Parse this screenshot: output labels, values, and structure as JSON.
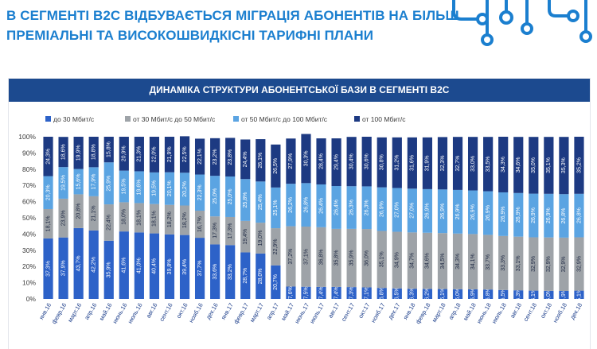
{
  "slide": {
    "title_line1": "В СЕГМЕНТІ B2C ВІДБУВАЄТЬСЯ МІГРАЦІЯ АБОНЕНТІВ НА БІЛЬШ",
    "title_line2": "ПРЕМІАЛЬНІ  ТА ВИСОКОШВИДКІСНІ ТАРИФНІ ПЛАНИ"
  },
  "colors": {
    "title": "#1b7fcf",
    "banner_bg": "#1c4a8f",
    "banner_text": "#ffffff",
    "decor": "#1b7fcf"
  },
  "decor": {
    "icon": "circuit-board-icon"
  },
  "chart_data": {
    "type": "bar",
    "stacked": true,
    "normalized": true,
    "title": "ДИНАМІКА СТРУКТУРИ АБОНЕНТСЬКОЇ БАЗИ В СЕГМЕНТІ B2C",
    "ylim": [
      0,
      100
    ],
    "yticks": [
      "0%",
      "10%",
      "20%",
      "30%",
      "40%",
      "50%",
      "60%",
      "70%",
      "80%",
      "90%",
      "100%"
    ],
    "legend_position": "top",
    "grid": false,
    "categories": [
      "янв.16",
      "февр.16",
      "март.16",
      "апр.16",
      "май.16",
      "июнь.16",
      "июль.16",
      "авг.16",
      "сент.16",
      "окт.16",
      "нояб.16",
      "дек.16",
      "янв.17",
      "февр.17",
      "март.17",
      "апр.17",
      "май.17",
      "июнь.17",
      "июль.17",
      "авг.17",
      "сент.17",
      "окт.17",
      "нояб.17",
      "дек.17",
      "янв.18",
      "февр.18",
      "март.18",
      "апр.18",
      "май.18",
      "июнь.18",
      "июль.18",
      "авг.18",
      "сент.18",
      "окт.18",
      "нояб.18",
      "дек.18"
    ],
    "series": [
      {
        "name": "до 30 Мбит/с",
        "color": "#2d62c8",
        "values": [
          37.3,
          37.9,
          43.7,
          42.2,
          35.9,
          41.6,
          41.0,
          40.4,
          39.8,
          39.4,
          37.7,
          33.6,
          33.2,
          28.7,
          28.0,
          20.7,
          7.6,
          7.5,
          7.4,
          7.4,
          7.3,
          7.1,
          6.8,
          6.5,
          6.3,
          6.2,
          6.1,
          6.0,
          5.9,
          5.8,
          5.5,
          5.3,
          5.1,
          5.0,
          4.9,
          5.1
        ],
        "labels": [
          "37,3%",
          "37,9%",
          "43,7%",
          "42,2%",
          "35,9%",
          "41,6%",
          "41,0%",
          "40,4%",
          "39,8%",
          "39,4%",
          "37,7%",
          "33,6%",
          "33,2%",
          "28,7%",
          "28,0%",
          "20,7%",
          "7,6%",
          "7,5%",
          "7,4%",
          "7,4%",
          "7,3%",
          "7,1%",
          "6,8%",
          "6,5%",
          "6,3%",
          "6,2%",
          "6,1%",
          "6,0%",
          "5,9%",
          "5,8%",
          "5,5%",
          "5,3%",
          "5,1%",
          "5,0%",
          "4,9%",
          "5,1%"
        ]
      },
      {
        "name": "от 30 Мбит/с до 50 Мбит/с",
        "color": "#9ea3a8",
        "values": [
          18.1,
          23.9,
          20.8,
          21.1,
          22.4,
          18.0,
          18.1,
          18.1,
          18.2,
          18.2,
          16.7,
          17.3,
          17.3,
          19.4,
          19.0,
          22.9,
          37.2,
          37.1,
          36.8,
          35.8,
          35.9,
          36.0,
          35.1,
          34.9,
          34.7,
          34.6,
          34.5,
          34.3,
          34.1,
          33.7,
          33.3,
          33.1,
          32.9,
          32.9,
          32.9,
          32.9
        ],
        "labels": [
          "18,1%",
          "23,9%",
          "20,8%",
          "21,1%",
          "22,4%",
          "18,0%",
          "18,1%",
          "18,1%",
          "18,2%",
          "18,2%",
          "16,7%",
          "17,3%",
          "17,3%",
          "19,4%",
          "19,0%",
          "22,9%",
          "37,2%",
          "37,1%",
          "36,8%",
          "35,8%",
          "35,9%",
          "36,0%",
          "35,1%",
          "34,9%",
          "34,7%",
          "34,6%",
          "34,5%",
          "34,3%",
          "34,1%",
          "33,7%",
          "33,3%",
          "33,1%",
          "32,9%",
          "32,9%",
          "32,9%",
          "32,9%"
        ]
      },
      {
        "name": "от 50 Мбит/с до 100 Мбит/с",
        "color": "#5ba4e2",
        "values": [
          20.3,
          19.5,
          15.6,
          17.9,
          25.9,
          19.5,
          19.6,
          19.5,
          20.1,
          20.2,
          22.3,
          25.0,
          25.0,
          25.8,
          25.4,
          25.1,
          26.2,
          26.8,
          26.4,
          26.4,
          26.3,
          26.3,
          26.9,
          27.0,
          27.0,
          26.9,
          26.9,
          26.9,
          26.9,
          26.9,
          26.9,
          26.9,
          26.9,
          26.9,
          26.8,
          26.8
        ],
        "labels": [
          "20,3%",
          "19,5%",
          "15,6%",
          "17,9%",
          "25,9%",
          "19,5%",
          "19,6%",
          "19,5%",
          "20,1%",
          "20,2%",
          "22,3%",
          "25,0%",
          "25,0%",
          "25,8%",
          "25,4%",
          "25,1%",
          "26,2%",
          "26,8%",
          "26,4%",
          "26,4%",
          "26,3%",
          "26,3%",
          "26,9%",
          "27,0%",
          "27,0%",
          "26,9%",
          "26,9%",
          "26,9%",
          "26,9%",
          "26,9%",
          "26,9%",
          "26,9%",
          "26,9%",
          "26,9%",
          "26,8%",
          "26,8%"
        ]
      },
      {
        "name": "от 100 Мбит/с",
        "color": "#1d3a82",
        "values": [
          24.3,
          18.6,
          19.9,
          18.8,
          15.8,
          20.9,
          21.3,
          22.0,
          21.9,
          22.5,
          22.1,
          23.2,
          23.8,
          24.4,
          26.1,
          26.5,
          27.9,
          30.3,
          28.4,
          29.4,
          30.4,
          30.6,
          30.8,
          31.2,
          31.6,
          31.9,
          32.3,
          32.7,
          33.0,
          33.5,
          34.3,
          34.6,
          35.0,
          35.1,
          35.3,
          35.2
        ],
        "labels": [
          "24,3%",
          "18,6%",
          "19,9%",
          "18,8%",
          "15,8%",
          "20,9%",
          "21,3%",
          "22,0%",
          "21,9%",
          "22,5%",
          "22,1%",
          "23,2%",
          "23,8%",
          "24,4%",
          "26,1%",
          "26,5%",
          "27,9%",
          "30,3%",
          "28,4%",
          "29,4%",
          "30,4%",
          "30,6%",
          "30,8%",
          "31,2%",
          "31,6%",
          "31,9%",
          "32,3%",
          "32,7%",
          "33,0%",
          "33,5%",
          "34,3%",
          "34,6%",
          "35,0%",
          "35,1%",
          "35,3%",
          "35,2%"
        ]
      }
    ]
  }
}
